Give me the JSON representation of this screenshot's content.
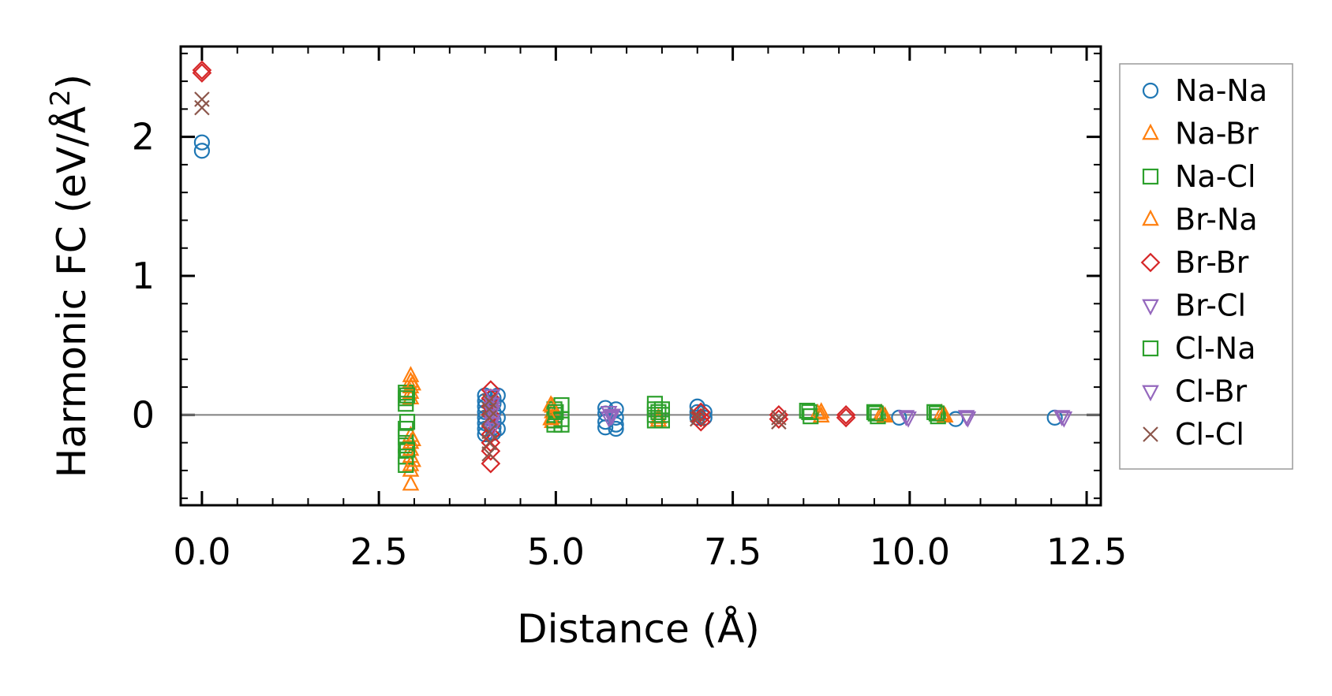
{
  "chart_data": {
    "type": "scatter",
    "xlabel": "Distance (Å)",
    "ylabel_main": "Harmonic FC (eV/Å",
    "ylabel_sup": "2",
    "ylabel_close": ")",
    "xlim": [
      -0.3,
      12.7
    ],
    "ylim": [
      -0.65,
      2.65
    ],
    "x_ticks": [
      0.0,
      2.5,
      5.0,
      7.5,
      10.0,
      12.5
    ],
    "x_tick_labels": [
      "0.0",
      "2.5",
      "5.0",
      "7.5",
      "10.0",
      "12.5"
    ],
    "y_ticks": [
      0,
      1,
      2
    ],
    "y_tick_labels": [
      "0",
      "1",
      "2"
    ],
    "reference_line_y": 0,
    "legend_position": "right-outside",
    "series": [
      {
        "name": "Na-Na",
        "marker": "circle",
        "color": "#1f77b4",
        "points": [
          [
            0,
            1.96
          ],
          [
            0,
            1.9
          ],
          [
            4.0,
            0.14
          ],
          [
            4.0,
            0.1
          ],
          [
            4.0,
            0.06
          ],
          [
            4.0,
            0.02
          ],
          [
            4.0,
            -0.02
          ],
          [
            4.0,
            -0.06
          ],
          [
            4.0,
            -0.1
          ],
          [
            4.0,
            -0.14
          ],
          [
            4.12,
            0.12
          ],
          [
            4.12,
            0.08
          ],
          [
            4.12,
            0.02
          ],
          [
            4.12,
            -0.04
          ],
          [
            4.12,
            -0.09
          ],
          [
            4.12,
            -0.13
          ],
          [
            4.18,
            0.14
          ],
          [
            4.18,
            0.06
          ],
          [
            4.18,
            -0.02
          ],
          [
            4.18,
            -0.1
          ],
          [
            5.7,
            0.05
          ],
          [
            5.7,
            0.01
          ],
          [
            5.7,
            -0.05
          ],
          [
            5.7,
            -0.09
          ],
          [
            5.85,
            0.04
          ],
          [
            5.85,
            -0.02
          ],
          [
            5.85,
            -0.07
          ],
          [
            5.85,
            -0.1
          ],
          [
            7.0,
            0.06
          ],
          [
            7.0,
            0.02
          ],
          [
            7.0,
            -0.02
          ],
          [
            7.1,
            0.02
          ],
          [
            7.1,
            -0.02
          ],
          [
            9.85,
            -0.02
          ],
          [
            10.65,
            -0.03
          ],
          [
            12.05,
            -0.02
          ]
        ]
      },
      {
        "name": "Na-Br",
        "marker": "triangle-up",
        "color": "#ff7f0e",
        "points": [
          [
            2.95,
            0.28
          ],
          [
            2.95,
            0.24
          ],
          [
            2.95,
            0.2
          ],
          [
            2.95,
            0.16
          ],
          [
            2.95,
            0.12
          ],
          [
            2.95,
            -0.15
          ],
          [
            2.95,
            -0.2
          ],
          [
            2.95,
            -0.25
          ],
          [
            2.95,
            -0.3
          ],
          [
            2.95,
            -0.36
          ],
          [
            2.95,
            -0.4
          ],
          [
            2.95,
            -0.5
          ],
          [
            4.95,
            0.06
          ],
          [
            4.95,
            0.02
          ],
          [
            4.95,
            -0.02
          ],
          [
            4.95,
            -0.05
          ],
          [
            6.45,
            -0.02
          ],
          [
            6.45,
            -0.04
          ],
          [
            8.7,
            0.01
          ],
          [
            8.75,
            -0.01
          ],
          [
            9.6,
            0.01
          ],
          [
            9.65,
            -0.01
          ],
          [
            10.45,
            0.01
          ],
          [
            10.5,
            -0.01
          ]
        ]
      },
      {
        "name": "Na-Cl",
        "marker": "square",
        "color": "#2ca02c",
        "points": [
          [
            2.88,
            0.16
          ],
          [
            2.88,
            0.12
          ],
          [
            2.88,
            0.08
          ],
          [
            2.88,
            -0.1
          ],
          [
            2.88,
            -0.16
          ],
          [
            2.88,
            -0.22
          ],
          [
            2.88,
            -0.3
          ],
          [
            2.88,
            -0.36
          ],
          [
            4.98,
            0.04
          ],
          [
            4.98,
            0.0
          ],
          [
            4.98,
            -0.04
          ],
          [
            4.98,
            -0.07
          ],
          [
            5.08,
            0.07
          ],
          [
            5.08,
            -0.03
          ],
          [
            5.08,
            -0.07
          ],
          [
            6.4,
            0.08
          ],
          [
            6.4,
            0.04
          ],
          [
            6.4,
            0.0
          ],
          [
            6.4,
            -0.04
          ],
          [
            6.5,
            0.04
          ],
          [
            6.5,
            0.0
          ],
          [
            6.5,
            -0.04
          ],
          [
            8.55,
            0.03
          ],
          [
            8.6,
            -0.01
          ],
          [
            9.5,
            0.02
          ],
          [
            9.55,
            -0.01
          ],
          [
            10.35,
            0.02
          ],
          [
            10.4,
            -0.01
          ]
        ]
      },
      {
        "name": "Br-Na",
        "marker": "triangle-up",
        "color": "#ff7f0e",
        "points": [
          [
            2.98,
            0.22
          ],
          [
            2.98,
            -0.18
          ],
          [
            2.98,
            -0.33
          ],
          [
            4.93,
            0.07
          ],
          [
            4.93,
            -0.03
          ],
          [
            8.75,
            0.02
          ],
          [
            9.62,
            0.0
          ],
          [
            10.48,
            0.0
          ]
        ]
      },
      {
        "name": "Br-Br",
        "marker": "diamond",
        "color": "#d62728",
        "points": [
          [
            0,
            2.48
          ],
          [
            0,
            2.46
          ],
          [
            4.08,
            0.18
          ],
          [
            4.08,
            0.12
          ],
          [
            4.08,
            0.06
          ],
          [
            4.08,
            0.0
          ],
          [
            4.08,
            -0.08
          ],
          [
            4.08,
            -0.14
          ],
          [
            4.08,
            -0.2
          ],
          [
            4.08,
            -0.26
          ],
          [
            4.08,
            -0.35
          ],
          [
            7.05,
            0.02
          ],
          [
            7.05,
            -0.02
          ],
          [
            7.05,
            -0.05
          ],
          [
            8.15,
            0.0
          ],
          [
            8.15,
            -0.03
          ],
          [
            9.1,
            0.0
          ],
          [
            9.1,
            -0.02
          ]
        ]
      },
      {
        "name": "Br-Cl",
        "marker": "triangle-down",
        "color": "#9467bd",
        "points": [
          [
            4.1,
            0.14
          ],
          [
            4.1,
            0.08
          ],
          [
            4.1,
            0.02
          ],
          [
            4.1,
            -0.04
          ],
          [
            4.1,
            -0.1
          ],
          [
            5.75,
            0.02
          ],
          [
            5.75,
            -0.02
          ],
          [
            5.8,
            0.0
          ],
          [
            9.95,
            -0.01
          ],
          [
            10.8,
            -0.01
          ],
          [
            12.15,
            -0.01
          ]
        ]
      },
      {
        "name": "Cl-Na",
        "marker": "square",
        "color": "#2ca02c",
        "points": [
          [
            2.9,
            0.14
          ],
          [
            2.9,
            -0.05
          ],
          [
            2.9,
            -0.25
          ],
          [
            5.0,
            0.02
          ],
          [
            6.45,
            0.02
          ],
          [
            8.58,
            0.02
          ],
          [
            9.52,
            0.01
          ],
          [
            10.38,
            0.01
          ]
        ]
      },
      {
        "name": "Cl-Br",
        "marker": "triangle-down",
        "color": "#9467bd",
        "points": [
          [
            4.1,
            0.05
          ],
          [
            4.1,
            -0.06
          ],
          [
            5.78,
            -0.01
          ],
          [
            9.98,
            -0.02
          ],
          [
            10.82,
            -0.02
          ],
          [
            12.18,
            -0.02
          ]
        ]
      },
      {
        "name": "Cl-Cl",
        "marker": "x",
        "color": "#8c564b",
        "points": [
          [
            0,
            2.27
          ],
          [
            0,
            2.21
          ],
          [
            4.06,
            0.1
          ],
          [
            4.06,
            0.04
          ],
          [
            4.06,
            -0.02
          ],
          [
            4.06,
            -0.12
          ],
          [
            4.06,
            -0.2
          ],
          [
            4.06,
            -0.28
          ],
          [
            7.0,
            0.0
          ],
          [
            7.0,
            -0.03
          ],
          [
            8.15,
            -0.02
          ],
          [
            8.15,
            -0.05
          ]
        ]
      }
    ]
  }
}
